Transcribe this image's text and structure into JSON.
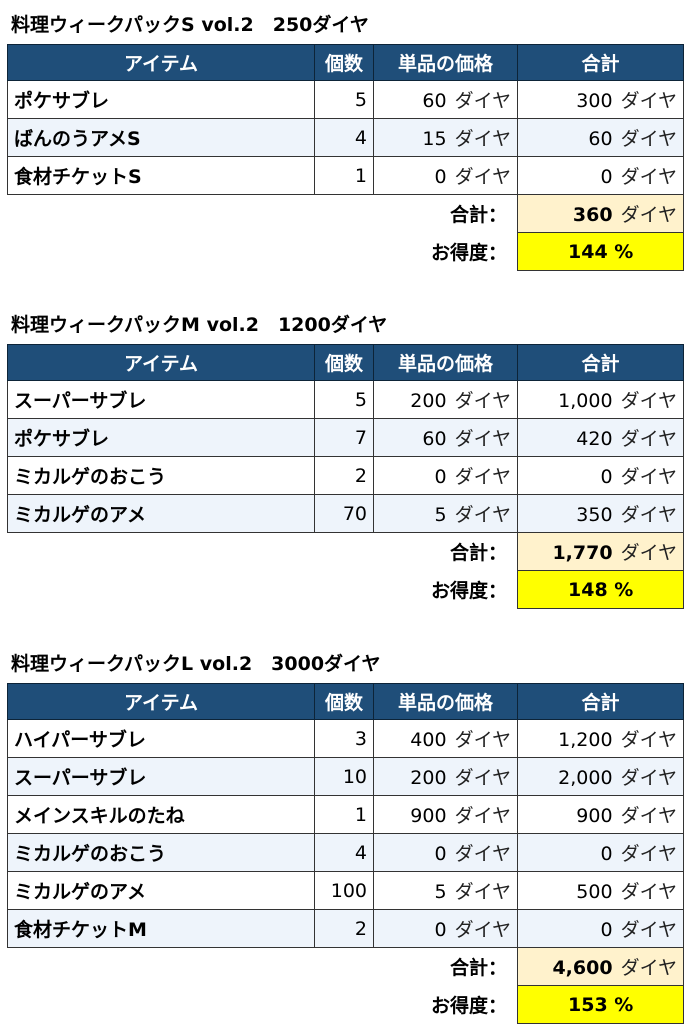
{
  "colors": {
    "header_bg": "#1f4e79",
    "alt_row": "#eef4fb",
    "total_bg": "#fff2cc",
    "pct_bg": "#ffff00"
  },
  "headers": [
    "アイテム",
    "個数",
    "単品の価格",
    "合計"
  ],
  "unit": "ダイヤ",
  "total_label": "合計：",
  "deal_label": "お得度：",
  "packs": [
    {
      "title": "料理ウィークパックS vol.2　250ダイヤ",
      "rows": [
        [
          "ポケサブレ",
          "5",
          "60",
          "300"
        ],
        [
          "ばんのうアメS",
          "4",
          "15",
          "60"
        ],
        [
          "食材チケットS",
          "1",
          "0",
          "0"
        ]
      ],
      "total": "360",
      "deal": "144 %"
    },
    {
      "title": "料理ウィークパックM vol.2　1200ダイヤ",
      "rows": [
        [
          "スーパーサブレ",
          "5",
          "200",
          "1,000"
        ],
        [
          "ポケサブレ",
          "7",
          "60",
          "420"
        ],
        [
          "ミカルゲのおこう",
          "2",
          "0",
          "0"
        ],
        [
          "ミカルゲのアメ",
          "70",
          "5",
          "350"
        ]
      ],
      "total": "1,770",
      "deal": "148 %"
    },
    {
      "title": "料理ウィークパックL vol.2　3000ダイヤ",
      "rows": [
        [
          "ハイパーサブレ",
          "3",
          "400",
          "1,200"
        ],
        [
          "スーパーサブレ",
          "10",
          "200",
          "2,000"
        ],
        [
          "メインスキルのたね",
          "1",
          "900",
          "900"
        ],
        [
          "ミカルゲのおこう",
          "4",
          "0",
          "0"
        ],
        [
          "ミカルゲのアメ",
          "100",
          "5",
          "500"
        ],
        [
          "食材チケットM",
          "2",
          "0",
          "0"
        ]
      ],
      "total": "4,600",
      "deal": "153 %"
    }
  ]
}
